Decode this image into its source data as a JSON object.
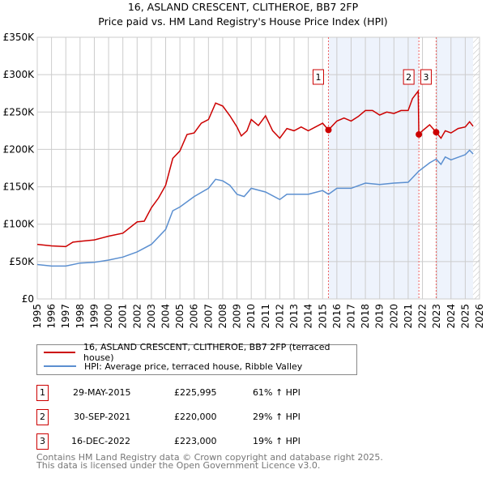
{
  "chart_data": {
    "type": "line",
    "title": "16, ASLAND CRESCENT, CLITHEROE, BB7 2FP",
    "subtitle": "Price paid vs. HM Land Registry's House Price Index (HPI)",
    "xlim": [
      1995,
      2026
    ],
    "ylim": [
      0,
      350000
    ],
    "x_ticks": [
      "1995",
      "1996",
      "1997",
      "1998",
      "1999",
      "2000",
      "2001",
      "2002",
      "2003",
      "2004",
      "2005",
      "2006",
      "2007",
      "2008",
      "2009",
      "2010",
      "2011",
      "2012",
      "2013",
      "2014",
      "2015",
      "2016",
      "2017",
      "2018",
      "2019",
      "2020",
      "2021",
      "2022",
      "2023",
      "2024",
      "2025",
      "2026"
    ],
    "y_ticks": [
      {
        "v": 0,
        "label": "£0"
      },
      {
        "v": 50000,
        "label": "£50K"
      },
      {
        "v": 100000,
        "label": "£100K"
      },
      {
        "v": 150000,
        "label": "£150K"
      },
      {
        "v": 200000,
        "label": "£200K"
      },
      {
        "v": 250000,
        "label": "£250K"
      },
      {
        "v": 300000,
        "label": "£300K"
      },
      {
        "v": 350000,
        "label": "£350K"
      }
    ],
    "grid": true,
    "series": [
      {
        "name": "16, ASLAND CRESCENT, CLITHEROE, BB7 2FP (terraced house)",
        "color": "#cc0000",
        "x": [
          1995,
          1996,
          1997,
          1997.5,
          1998,
          1999,
          2000,
          2001,
          2002,
          2002.5,
          2003,
          2003.5,
          2004,
          2004.5,
          2005,
          2005.5,
          2006,
          2006.5,
          2007,
          2007.5,
          2008,
          2008.5,
          2009,
          2009.3,
          2009.7,
          2010,
          2010.5,
          2011,
          2011.5,
          2012,
          2012.5,
          2013,
          2013.5,
          2014,
          2014.5,
          2015,
          2015.41,
          2016,
          2016.5,
          2017,
          2017.5,
          2018,
          2018.5,
          2019,
          2019.5,
          2020,
          2020.5,
          2021,
          2021.3,
          2021.7,
          2021.75,
          2022,
          2022.5,
          2022.96,
          2023.3,
          2023.6,
          2024,
          2024.5,
          2025,
          2025.3,
          2025.55
        ],
        "y": [
          73000,
          71000,
          70000,
          76000,
          77000,
          79000,
          84000,
          88000,
          103000,
          104000,
          122000,
          135000,
          152000,
          188000,
          198000,
          220000,
          222000,
          235000,
          240000,
          262000,
          258000,
          245000,
          230000,
          218000,
          225000,
          240000,
          232000,
          245000,
          225000,
          215000,
          228000,
          225000,
          230000,
          225000,
          230000,
          235000,
          225995,
          238000,
          242000,
          238000,
          244000,
          252000,
          252000,
          246000,
          250000,
          248000,
          252000,
          252000,
          268000,
          278000,
          220000,
          225000,
          233000,
          223000,
          215000,
          225000,
          222000,
          228000,
          230000,
          237000,
          231000
        ]
      },
      {
        "name": "HPI: Average price, terraced house, Ribble Valley",
        "color": "#5b8fd0",
        "x": [
          1995,
          1996,
          1997,
          1998,
          1999,
          2000,
          2001,
          2002,
          2003,
          2004,
          2004.5,
          2005,
          2006,
          2007,
          2007.5,
          2008,
          2008.5,
          2009,
          2009.5,
          2010,
          2011,
          2012,
          2012.5,
          2013,
          2014,
          2015,
          2015.41,
          2016,
          2017,
          2018,
          2019,
          2020,
          2021,
          2021.75,
          2022.5,
          2022.96,
          2023.3,
          2023.6,
          2024,
          2025,
          2025.3,
          2025.55
        ],
        "y": [
          46000,
          44000,
          44000,
          48000,
          49000,
          52000,
          56000,
          63000,
          73000,
          93000,
          118000,
          123000,
          137000,
          148000,
          160000,
          158000,
          152000,
          140000,
          137000,
          148000,
          143000,
          133000,
          140000,
          140000,
          140000,
          145000,
          140000,
          148000,
          148000,
          155000,
          153000,
          155000,
          156000,
          171000,
          182000,
          187000,
          180000,
          190000,
          186000,
          193000,
          199000,
          194000
        ]
      }
    ],
    "annotations": [
      {
        "label": "1",
        "x": 2015.41,
        "y": 225995
      },
      {
        "label": "2",
        "x": 2021.75,
        "y": 220000
      },
      {
        "label": "3",
        "x": 2022.96,
        "y": 223000
      }
    ],
    "shaded_ranges": [
      [
        2015.41,
        2021.75
      ],
      [
        2022.96,
        2025.55
      ]
    ],
    "hatched_from": 2025.55,
    "legend_position": "below"
  },
  "legend": {
    "property": "16, ASLAND CRESCENT, CLITHEROE, BB7 2FP (terraced house)",
    "hpi": "HPI: Average price, terraced house, Ribble Valley"
  },
  "sales": [
    {
      "num": "1",
      "date": "29-MAY-2015",
      "price": "£225,995",
      "hpi": "61% ↑ HPI"
    },
    {
      "num": "2",
      "date": "30-SEP-2021",
      "price": "£220,000",
      "hpi": "29% ↑ HPI"
    },
    {
      "num": "3",
      "date": "16-DEC-2022",
      "price": "£223,000",
      "hpi": "19% ↑ HPI"
    }
  ],
  "footer": {
    "line1": "Contains HM Land Registry data © Crown copyright and database right 2025.",
    "line2": "This data is licensed under the Open Government Licence v3.0."
  }
}
